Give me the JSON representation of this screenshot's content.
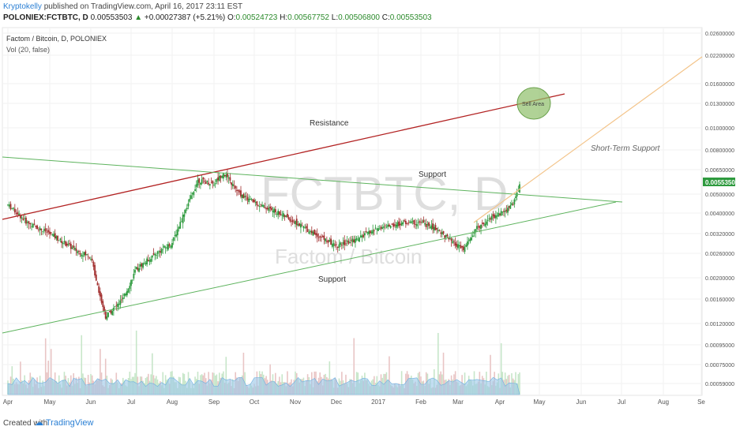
{
  "header": {
    "author": "Kryptokelly",
    "published": "published on TradingView.com, April 16, 2017 23:11 EST",
    "symbol": "POLONIEX:FCTBTC, D",
    "last": "0.00553503",
    "change": "+0.00027387 (+5.21%)",
    "o_label": "O:",
    "o_value": "0.00524723",
    "h_label": "H:",
    "h_value": "0.00567752",
    "l_label": "L:",
    "l_value": "0.00506800",
    "c_label": "C:",
    "c_value": "0.00553503"
  },
  "footer": {
    "created_with": "Created with",
    "brand": "TradingView"
  },
  "chart_data": {
    "type": "candlestick",
    "title": "Factom / Bitcoin, D, POLONIEX",
    "indicator": "Vol (20, false)",
    "watermark_symbol": "FCTBTC, D",
    "watermark_name": "Factom / Bitcoin",
    "y_scale": "log",
    "ylim": [
      0.0005,
      0.026
    ],
    "x_ticks": [
      "Apr",
      "May",
      "Jun",
      "Jul",
      "Aug",
      "Sep",
      "Oct",
      "Nov",
      "Dec",
      "2017",
      "Feb",
      "Mar",
      "Apr",
      "May",
      "Jun",
      "Jul",
      "Aug",
      "Se"
    ],
    "y_ticks": [
      "0.02600000",
      "0.02200000",
      "0.01600000",
      "0.01300000",
      "0.01000000",
      "0.00800000",
      "0.00650000",
      "0.00500000",
      "0.00400000",
      "0.00320000",
      "0.00260000",
      "0.00200000",
      "0.00160000",
      "0.00120000",
      "0.00095000",
      "0.00075000",
      "0.00059000"
    ],
    "current_price_label": "0.00553503",
    "annotations": [
      {
        "text": "Resistance"
      },
      {
        "text": "Support"
      },
      {
        "text": "Support"
      },
      {
        "text": "Short-Term Support"
      },
      {
        "text": "Sell Area"
      }
    ],
    "price_path": [
      {
        "date": "2016-04-01",
        "close": 0.0044
      },
      {
        "date": "2016-04-15",
        "close": 0.0036
      },
      {
        "date": "2016-05-01",
        "close": 0.0032
      },
      {
        "date": "2016-05-20",
        "close": 0.0027
      },
      {
        "date": "2016-06-01",
        "close": 0.0025
      },
      {
        "date": "2016-06-12",
        "close": 0.0013
      },
      {
        "date": "2016-06-25",
        "close": 0.0016
      },
      {
        "date": "2016-07-05",
        "close": 0.0022
      },
      {
        "date": "2016-07-20",
        "close": 0.0026
      },
      {
        "date": "2016-08-01",
        "close": 0.0029
      },
      {
        "date": "2016-08-20",
        "close": 0.0058
      },
      {
        "date": "2016-09-01",
        "close": 0.0056
      },
      {
        "date": "2016-09-08",
        "close": 0.0063
      },
      {
        "date": "2016-09-20",
        "close": 0.005
      },
      {
        "date": "2016-10-05",
        "close": 0.0044
      },
      {
        "date": "2016-10-20",
        "close": 0.004
      },
      {
        "date": "2016-11-01",
        "close": 0.0036
      },
      {
        "date": "2016-11-15",
        "close": 0.0032
      },
      {
        "date": "2016-12-01",
        "close": 0.0028
      },
      {
        "date": "2016-12-15",
        "close": 0.003
      },
      {
        "date": "2017-01-01",
        "close": 0.0034
      },
      {
        "date": "2017-01-20",
        "close": 0.0036
      },
      {
        "date": "2017-02-01",
        "close": 0.0036
      },
      {
        "date": "2017-02-15",
        "close": 0.0033
      },
      {
        "date": "2017-02-25",
        "close": 0.0029
      },
      {
        "date": "2017-03-05",
        "close": 0.0027
      },
      {
        "date": "2017-03-15",
        "close": 0.0034
      },
      {
        "date": "2017-03-25",
        "close": 0.0038
      },
      {
        "date": "2017-04-05",
        "close": 0.0041
      },
      {
        "date": "2017-04-12",
        "close": 0.0046
      },
      {
        "date": "2017-04-16",
        "close": 0.00553503
      }
    ],
    "colors": {
      "resistance": "#b22222",
      "support": "#5db35d",
      "short_term_support": "#f3c48a",
      "sell_area": "#8fbf6a",
      "up_candle": "#2e9a3e",
      "down_candle": "#a23030",
      "volume": "#9bc8ea",
      "price_label": "#2e9a3e"
    }
  }
}
